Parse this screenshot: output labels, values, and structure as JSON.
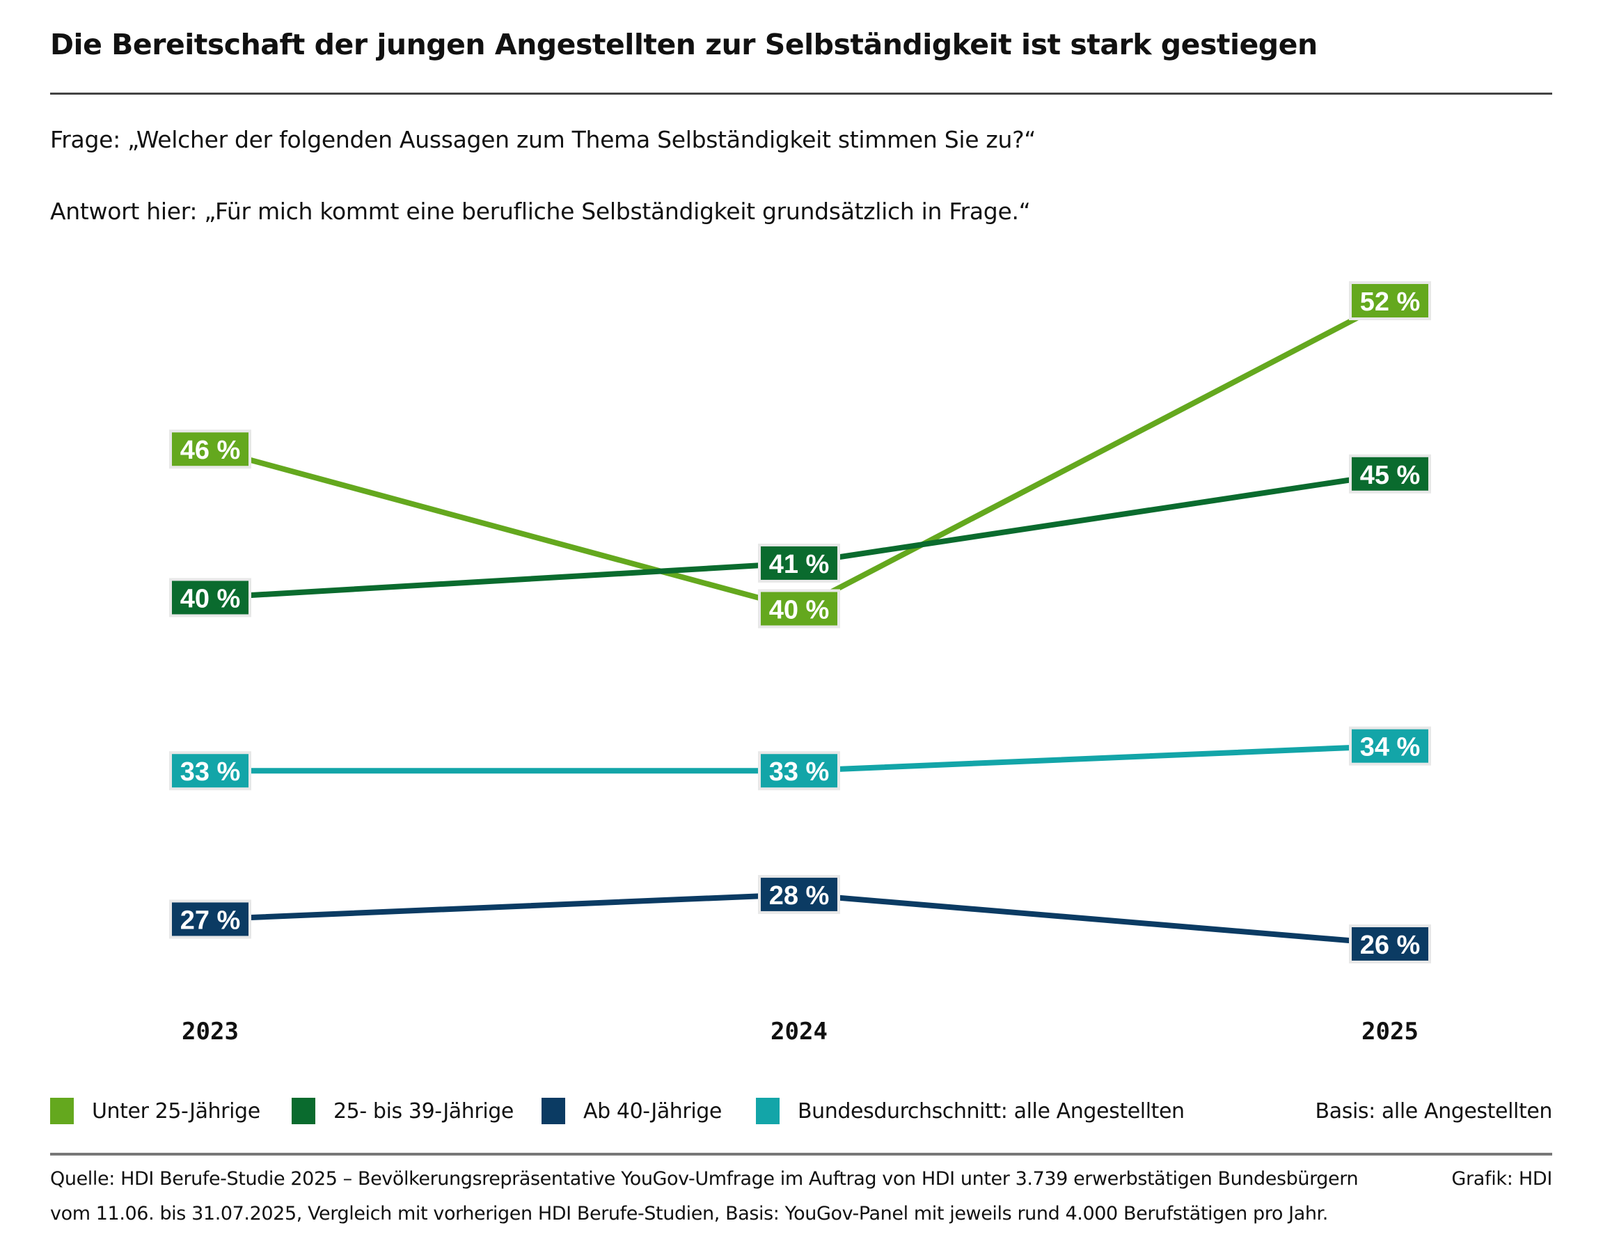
{
  "header": {
    "title": "Die Bereitschaft der jungen Angestellten zur Selbständigkeit ist stark gestiegen",
    "question": "Frage: „Welcher der folgenden Aussagen zum Thema Selbständigkeit stimmen Sie zu?“",
    "answer": "Antwort hier: „Für mich kommt eine berufliche Selbständigkeit grundsätzlich in Frage.“"
  },
  "chart_data": {
    "type": "line",
    "title": "Die Bereitschaft der jungen Angestellten zur Selbständigkeit ist stark gestiegen",
    "xlabel": "",
    "ylabel": "",
    "categories": [
      "2023",
      "2024",
      "2025"
    ],
    "ylim": [
      26,
      52
    ],
    "grid": false,
    "value_suffix": " %",
    "legend_position": "bottom",
    "series": [
      {
        "name": "Unter 25-Jährige",
        "color": "#64a81e",
        "values": [
          46,
          40,
          52
        ]
      },
      {
        "name": "25- bis 39-Jährige",
        "color": "#0a6b2e",
        "values": [
          40,
          41,
          45
        ]
      },
      {
        "name": "Ab 40-Jährige",
        "color": "#0b3b63",
        "values": [
          27,
          28,
          26
        ]
      },
      {
        "name": "Bundesdurchschnitt: alle Angestellten",
        "color": "#13a5a8",
        "values": [
          33,
          33,
          34
        ]
      }
    ]
  },
  "legend": {
    "basis": "Basis: alle Angestellten"
  },
  "footer": {
    "source_line1": "Quelle: HDI Berufe-Studie 2025 – Bevölkerungsrepräsentative YouGov-Umfrage im Auftrag von HDI unter 3.739 erwerbstätigen Bundesbürgern",
    "source_line2": "vom 11.06. bis 31.07.2025, Vergleich mit vorherigen HDI Berufe-Studien, Basis: YouGov-Panel mit jeweils rund 4.000 Berufstätigen pro Jahr.",
    "credit": "Grafik: HDI"
  }
}
